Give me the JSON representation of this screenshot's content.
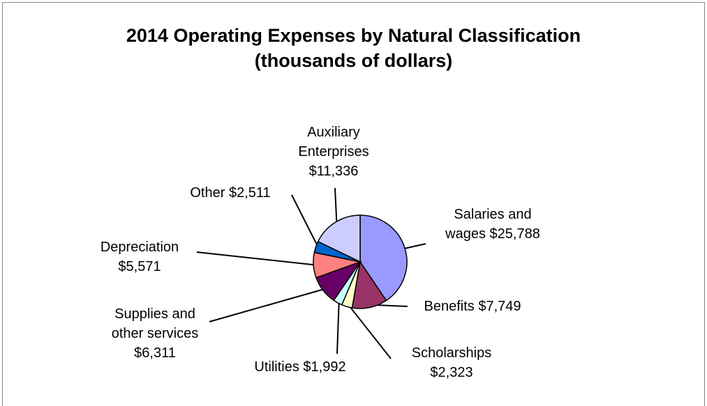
{
  "chart_data": {
    "type": "pie",
    "title": "2014 Operating Expenses by Natural Classification",
    "subtitle": "(thousands of dollars)",
    "categories": [
      "Salaries and wages",
      "Benefits",
      "Scholarships",
      "Utilities",
      "Supplies and other services",
      "Depreciation",
      "Other",
      "Auxiliary Enterprises"
    ],
    "values": [
      25788,
      7749,
      2323,
      1992,
      6311,
      5571,
      2511,
      11336
    ],
    "value_labels": [
      "$25,788",
      "$7,749",
      "$2,323",
      "$1,992",
      "$6,311",
      "$5,571",
      "$2,511",
      "$11,336"
    ],
    "colors": [
      "#9999ff",
      "#993366",
      "#ffffcc",
      "#ccffff",
      "#660066",
      "#ff8080",
      "#0066cc",
      "#ccccff"
    ]
  }
}
